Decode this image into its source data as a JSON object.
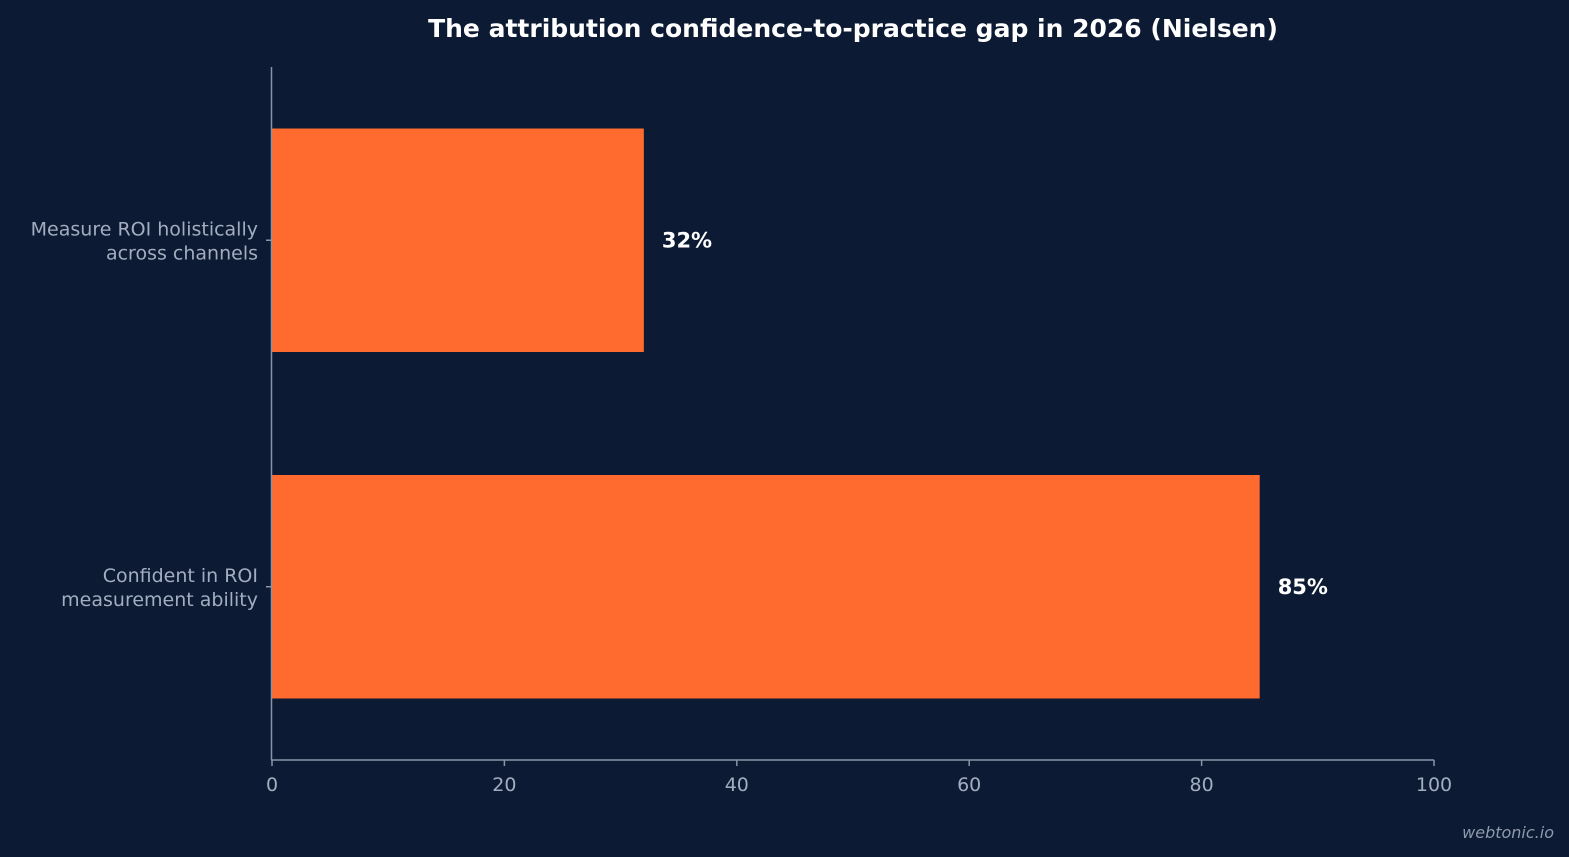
{
  "chart_data": {
    "type": "bar",
    "orientation": "horizontal",
    "title": "The attribution confidence-to-practice gap in 2026 (Nielsen)",
    "categories": [
      [
        "Measure ROI holistically",
        "across channels"
      ],
      [
        "Confident in ROI",
        "measurement ability"
      ]
    ],
    "values": [
      32,
      85
    ],
    "data_labels": [
      "32%",
      "85%"
    ],
    "xlim": [
      0,
      100
    ],
    "xticks": [
      0,
      20,
      40,
      60,
      80,
      100
    ],
    "xlabel": "",
    "ylabel": "",
    "grid": false,
    "bar_color": "#ff6b2e",
    "background_color": "#0c1a33"
  },
  "watermark": "webtonic.io"
}
